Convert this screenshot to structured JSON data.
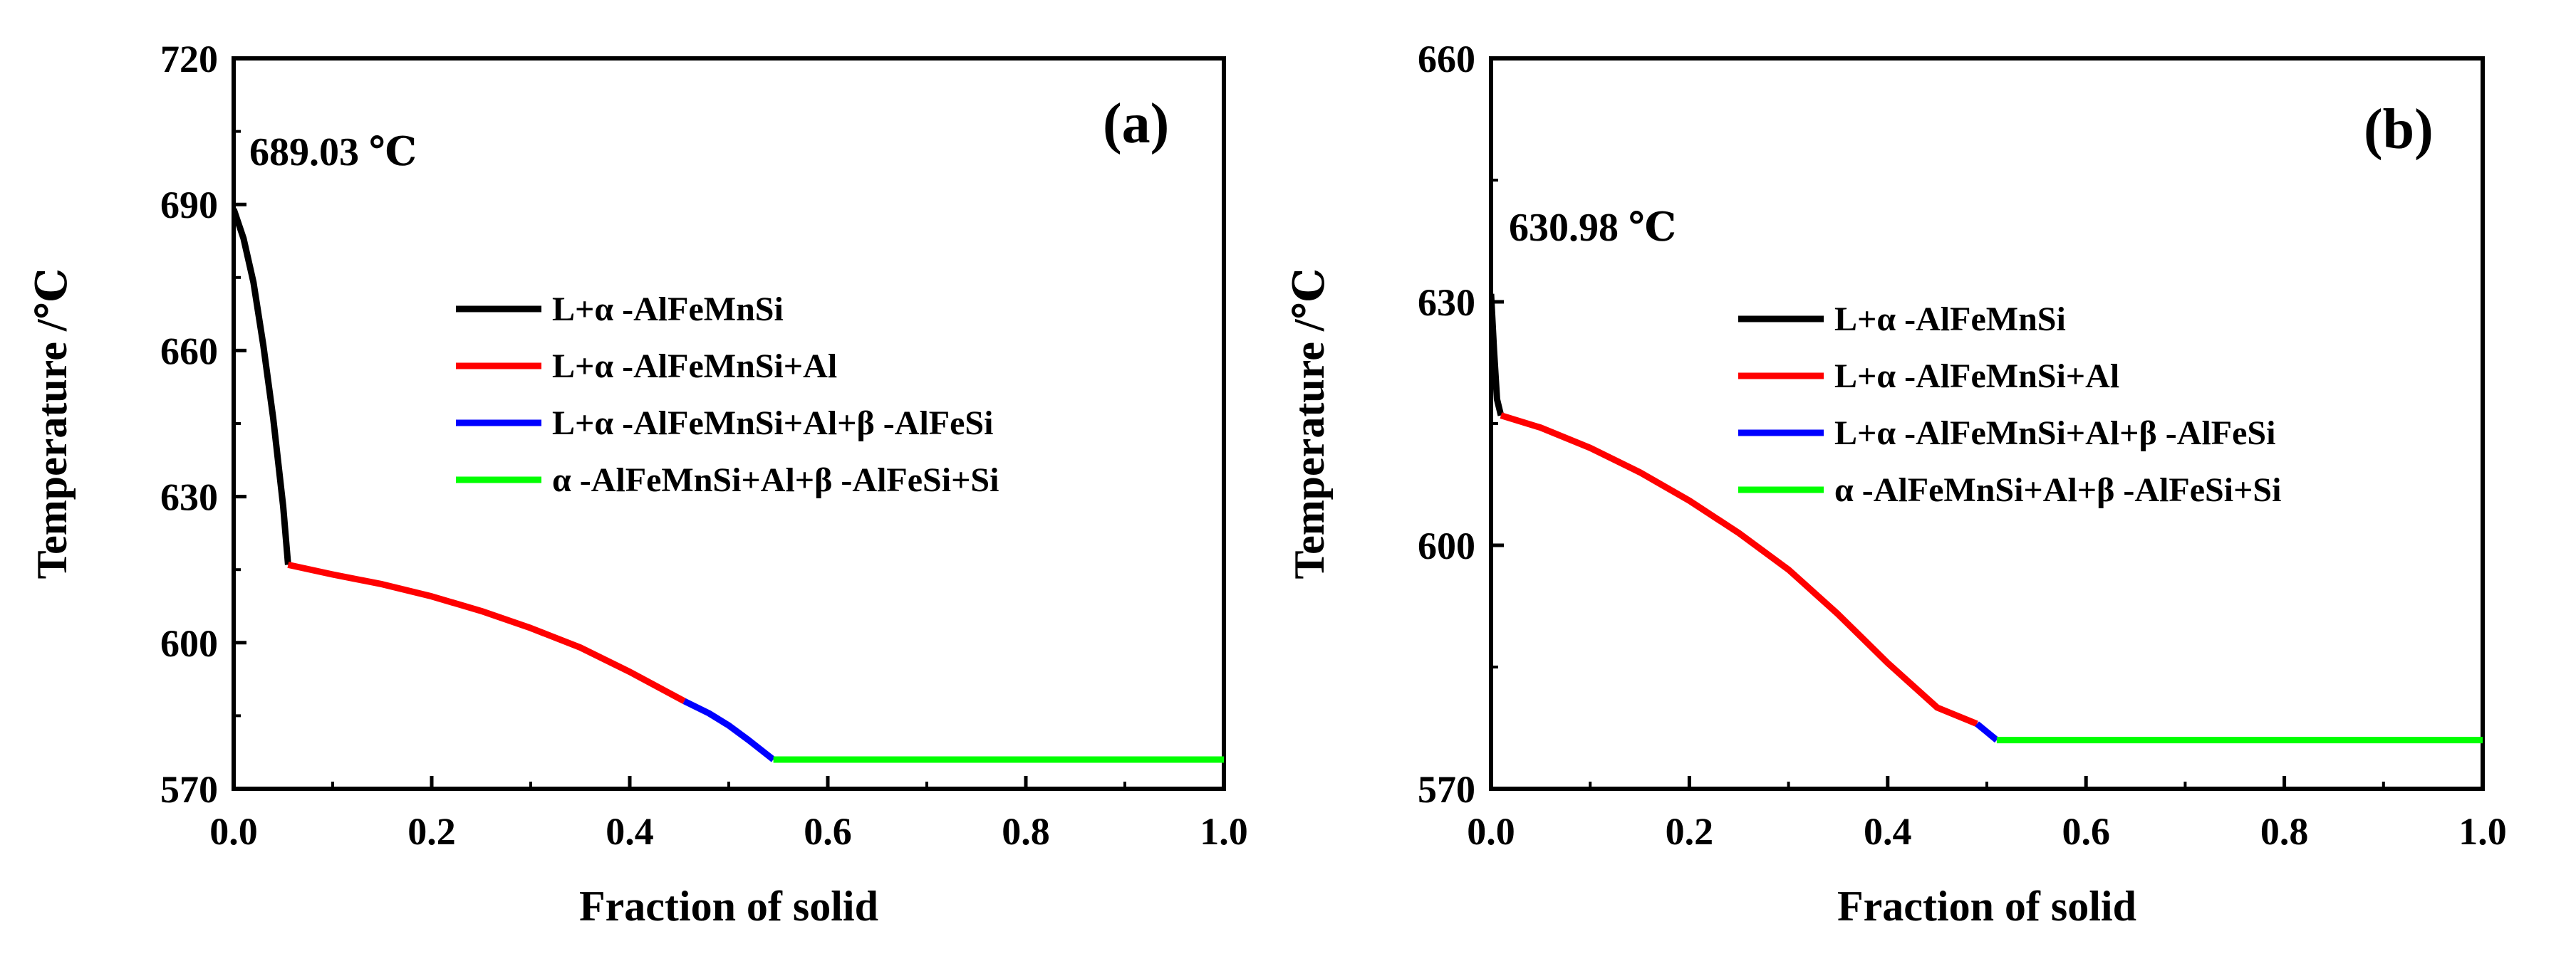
{
  "chart_data": [
    {
      "type": "line",
      "panel_label": "(a)",
      "xlabel": "Fraction of solid",
      "ylabel": "Temperature /℃",
      "xlim": [
        0.0,
        1.0
      ],
      "ylim": [
        570,
        720
      ],
      "xticks": [
        0.0,
        0.2,
        0.4,
        0.6,
        0.8,
        1.0
      ],
      "xtick_labels": [
        "0.0",
        "0.2",
        "0.4",
        "0.6",
        "0.8",
        "1.0"
      ],
      "yticks": [
        570,
        600,
        630,
        660,
        690,
        720
      ],
      "ytick_labels": [
        "570",
        "600",
        "630",
        "660",
        "690",
        "720"
      ],
      "annotation": "689.03 ℃",
      "legend_position": "center-right",
      "series": [
        {
          "name": "L+α -AlFeMnSi",
          "color": "#000000",
          "x": [
            0.0,
            0.01,
            0.02,
            0.03,
            0.04,
            0.05,
            0.055
          ],
          "y": [
            689.03,
            683,
            674,
            661,
            646,
            628,
            616
          ]
        },
        {
          "name": "L+α -AlFeMnSi+Al",
          "color": "#ff0000",
          "x": [
            0.055,
            0.1,
            0.15,
            0.2,
            0.25,
            0.3,
            0.35,
            0.4,
            0.455
          ],
          "y": [
            616,
            614,
            612,
            609.5,
            606.5,
            603,
            599,
            594,
            588
          ]
        },
        {
          "name": "L+α -AlFeMnSi+Al+β -AlFeSi",
          "color": "#0000ff",
          "x": [
            0.455,
            0.48,
            0.5,
            0.52,
            0.545
          ],
          "y": [
            588,
            585.5,
            583,
            580,
            576
          ]
        },
        {
          "name": "α -AlFeMnSi+Al+β -AlFeSi+Si",
          "color": "#00ff00",
          "x": [
            0.545,
            1.0
          ],
          "y": [
            576,
            576
          ]
        }
      ]
    },
    {
      "type": "line",
      "panel_label": "(b)",
      "xlabel": "Fraction of solid",
      "ylabel": "Temperature /℃",
      "xlim": [
        0.0,
        1.0
      ],
      "ylim": [
        570,
        660
      ],
      "xticks": [
        0.0,
        0.2,
        0.4,
        0.6,
        0.8,
        1.0
      ],
      "xtick_labels": [
        "0.0",
        "0.2",
        "0.4",
        "0.6",
        "0.8",
        "1.0"
      ],
      "yticks": [
        570,
        600,
        630,
        660
      ],
      "ytick_labels": [
        "570",
        "600",
        "630",
        "660"
      ],
      "annotation": "630.98 ℃",
      "legend_position": "center-right",
      "series": [
        {
          "name": "L+α -AlFeMnSi",
          "color": "#000000",
          "x": [
            0.0,
            0.003,
            0.006,
            0.01
          ],
          "y": [
            630.98,
            624,
            618,
            616
          ]
        },
        {
          "name": "L+α -AlFeMnSi+Al",
          "color": "#ff0000",
          "x": [
            0.01,
            0.05,
            0.1,
            0.15,
            0.2,
            0.25,
            0.3,
            0.35,
            0.4,
            0.45,
            0.49
          ],
          "y": [
            616,
            614.5,
            612,
            609,
            605.5,
            601.5,
            597,
            591.5,
            585.5,
            580,
            578
          ]
        },
        {
          "name": "L+α -AlFeMnSi+Al+β -AlFeSi",
          "color": "#0000ff",
          "x": [
            0.49,
            0.5,
            0.51
          ],
          "y": [
            578,
            577,
            576
          ]
        },
        {
          "name": "α -AlFeMnSi+Al+β -AlFeSi+Si",
          "color": "#00ff00",
          "x": [
            0.51,
            1.0
          ],
          "y": [
            576,
            576
          ]
        }
      ]
    }
  ]
}
